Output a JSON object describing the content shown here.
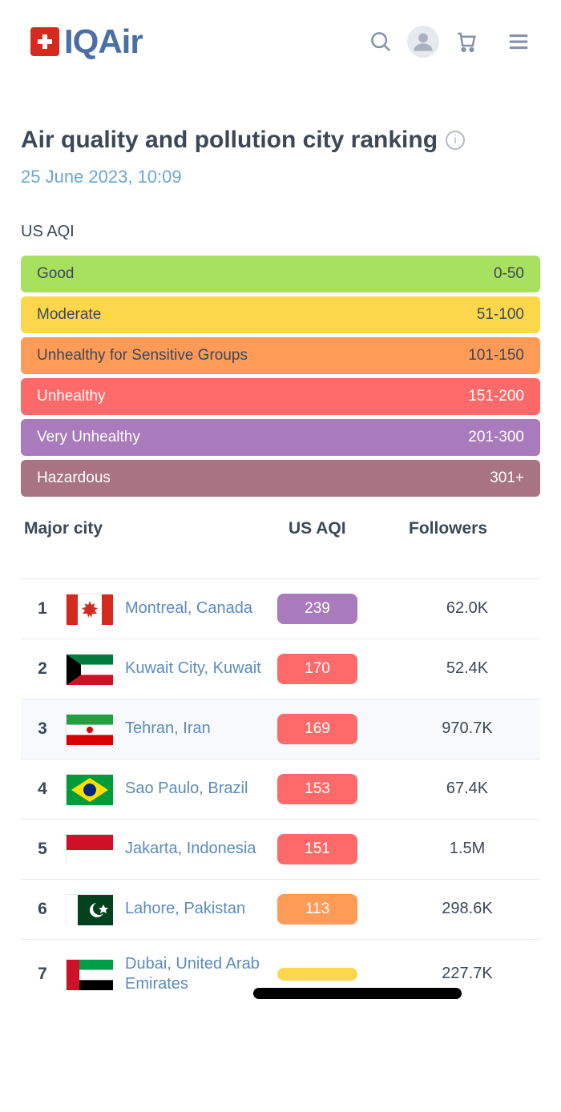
{
  "brand": "IQAir",
  "page": {
    "title": "Air quality and pollution city ranking",
    "timestamp": "25 June 2023, 10:09",
    "scale_label": "US AQI"
  },
  "legend": [
    {
      "label": "Good",
      "range": "0-50",
      "bg": "#a8e05f",
      "dark_text": true
    },
    {
      "label": "Moderate",
      "range": "51-100",
      "bg": "#fdd74b",
      "dark_text": true
    },
    {
      "label": "Unhealthy for Sensitive Groups",
      "range": "101-150",
      "bg": "#fe9b57",
      "dark_text": true
    },
    {
      "label": "Unhealthy",
      "range": "151-200",
      "bg": "#fe6a69",
      "dark_text": false
    },
    {
      "label": "Very Unhealthy",
      "range": "201-300",
      "bg": "#a97abc",
      "dark_text": false
    },
    {
      "label": "Hazardous",
      "range": "301+",
      "bg": "#a87383",
      "dark_text": false
    }
  ],
  "columns": {
    "city": "Major city",
    "aqi": "US AQI",
    "followers": "Followers"
  },
  "rows": [
    {
      "rank": "1",
      "city": "Montreal, Canada",
      "aqi": "239",
      "aqi_color": "#a97abc",
      "followers": "62.0K",
      "flag": "ca",
      "shaded": false
    },
    {
      "rank": "2",
      "city": "Kuwait City, Kuwait",
      "aqi": "170",
      "aqi_color": "#fe6a69",
      "followers": "52.4K",
      "flag": "kw",
      "shaded": false
    },
    {
      "rank": "3",
      "city": "Tehran, Iran",
      "aqi": "169",
      "aqi_color": "#fe6a69",
      "followers": "970.7K",
      "flag": "ir",
      "shaded": true
    },
    {
      "rank": "4",
      "city": "Sao Paulo, Brazil",
      "aqi": "153",
      "aqi_color": "#fe6a69",
      "followers": "67.4K",
      "flag": "br",
      "shaded": false
    },
    {
      "rank": "5",
      "city": "Jakarta, Indonesia",
      "aqi": "151",
      "aqi_color": "#fe6a69",
      "followers": "1.5M",
      "flag": "id",
      "shaded": false
    },
    {
      "rank": "6",
      "city": "Lahore, Pakistan",
      "aqi": "113",
      "aqi_color": "#fe9b57",
      "followers": "298.6K",
      "flag": "pk",
      "shaded": false
    },
    {
      "rank": "7",
      "city": "Dubai, United Arab Emirates",
      "aqi": "",
      "aqi_color": "#fdd74b",
      "followers": "227.7K",
      "flag": "ae",
      "shaded": false,
      "redacted": true
    }
  ]
}
